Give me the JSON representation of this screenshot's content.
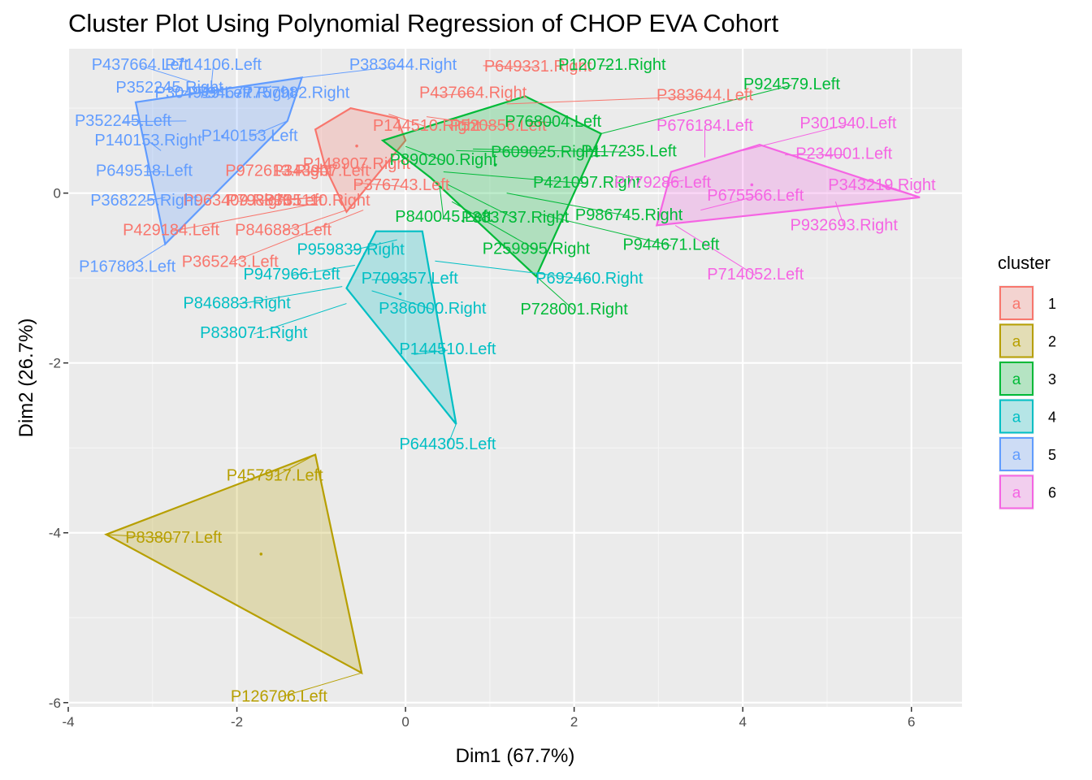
{
  "chart_data": {
    "type": "scatter",
    "title": "Cluster Plot Using Polynomial Regression of CHOP EVA Cohort",
    "xlabel": "Dim1 (67.7%)",
    "ylabel": "Dim2 (26.7%)",
    "xlim": [
      -4.0,
      6.6
    ],
    "ylim": [
      -6.05,
      1.7
    ],
    "x_ticks": [
      -4,
      -2,
      0,
      2,
      4,
      6
    ],
    "y_ticks": [
      -6,
      -4,
      -2,
      0
    ],
    "x_tick_labels": [
      "-4",
      "-2",
      "0",
      "2",
      "4",
      "6"
    ],
    "y_tick_labels": [
      "-6",
      "-4",
      "-2",
      "0"
    ],
    "grid": true,
    "legend_title": "cluster",
    "legend_placement": "right",
    "legend_key_letter": "a",
    "clusters": [
      {
        "name": "1",
        "color": "#F8766D",
        "hull": [
          [
            -1.07,
            0.75
          ],
          [
            -0.65,
            1.0
          ],
          [
            -0.1,
            0.88
          ],
          [
            0.0,
            0.62
          ],
          [
            -0.7,
            -0.22
          ],
          [
            -0.95,
            0.3
          ]
        ],
        "points": [
          {
            "label": "P649331.Right",
            "x": 0.92,
            "y": 1.5,
            "lx": 1.57,
            "ly": 1.5,
            "anchor": "middle"
          },
          {
            "label": "P437664.Right",
            "x": 0.35,
            "y": 1.15,
            "lx": 0.8,
            "ly": 1.19,
            "anchor": "middle"
          },
          {
            "label": "P383644.Left",
            "x": 1.2,
            "y": 1.05,
            "lx": 3.55,
            "ly": 1.16,
            "anchor": "middle"
          },
          {
            "label": "P144510.Right",
            "x": -0.2,
            "y": 0.93,
            "lx": 0.25,
            "ly": 0.8,
            "anchor": "middle"
          },
          {
            "label": "P520856.Left",
            "x": 0.25,
            "y": 0.9,
            "lx": 1.1,
            "ly": 0.8,
            "anchor": "middle"
          },
          {
            "label": "P148907.Right",
            "x": -0.5,
            "y": 0.25,
            "lx": -0.58,
            "ly": 0.35,
            "anchor": "middle"
          },
          {
            "label": "P972613.Right",
            "x": -0.95,
            "y": 0.25,
            "lx": -1.5,
            "ly": 0.27,
            "anchor": "middle"
          },
          {
            "label": "P343907.Left",
            "x": -0.9,
            "y": 0.25,
            "lx": -1.0,
            "ly": 0.27,
            "anchor": "middle"
          },
          {
            "label": "P376743.Left",
            "x": -0.6,
            "y": 0.12,
            "lx": -0.05,
            "ly": 0.1,
            "anchor": "middle"
          },
          {
            "label": "P963409.Right",
            "x": -1.0,
            "y": -0.05,
            "lx": -2.0,
            "ly": -0.08,
            "anchor": "middle"
          },
          {
            "label": "P798835.Left",
            "x": -1.1,
            "y": -0.05,
            "lx": -1.55,
            "ly": -0.08,
            "anchor": "middle"
          },
          {
            "label": "P735110.Right",
            "x": -1.0,
            "y": -0.05,
            "lx": -1.05,
            "ly": -0.08,
            "anchor": "middle"
          },
          {
            "label": "P429184.Left",
            "x": -1.05,
            "y": -0.12,
            "lx": -2.78,
            "ly": -0.43,
            "anchor": "middle"
          },
          {
            "label": "P846883.Left",
            "x": -0.7,
            "y": -0.2,
            "lx": -1.45,
            "ly": -0.43,
            "anchor": "middle"
          },
          {
            "label": "P365243.Left",
            "x": -0.5,
            "y": -0.2,
            "lx": -2.08,
            "ly": -0.8,
            "anchor": "middle"
          }
        ]
      },
      {
        "name": "2",
        "color": "#B79F00",
        "hull": [
          [
            -3.55,
            -4.02
          ],
          [
            -1.07,
            -3.08
          ],
          [
            -0.52,
            -5.65
          ]
        ],
        "points": [
          {
            "label": "P457917.Left",
            "x": -1.07,
            "y": -3.08,
            "lx": -1.55,
            "ly": -3.32,
            "anchor": "middle"
          },
          {
            "label": "P838077.Left",
            "x": -3.55,
            "y": -4.02,
            "lx": -2.75,
            "ly": -4.05,
            "anchor": "middle"
          },
          {
            "label": "P126706.Left",
            "x": -0.52,
            "y": -5.65,
            "lx": -1.5,
            "ly": -5.92,
            "anchor": "middle"
          }
        ]
      },
      {
        "name": "3",
        "color": "#00BA38",
        "hull": [
          [
            -0.27,
            0.62
          ],
          [
            1.42,
            1.14
          ],
          [
            2.32,
            0.7
          ],
          [
            1.55,
            -0.98
          ],
          [
            0.3,
            0.18
          ]
        ],
        "points": [
          {
            "label": "P120721.Right",
            "x": 2.3,
            "y": 1.5,
            "lx": 2.45,
            "ly": 1.52,
            "anchor": "middle"
          },
          {
            "label": "P924579.Left",
            "x": 2.32,
            "y": 0.7,
            "lx": 4.58,
            "ly": 1.29,
            "anchor": "middle"
          },
          {
            "label": "P768004.Left",
            "x": 1.42,
            "y": 0.85,
            "lx": 1.75,
            "ly": 0.85,
            "anchor": "middle"
          },
          {
            "label": "P890200.Right",
            "x": 0.0,
            "y": 0.55,
            "lx": 0.45,
            "ly": 0.4,
            "anchor": "middle"
          },
          {
            "label": "P609025.Right",
            "x": 0.6,
            "y": 0.5,
            "lx": 1.65,
            "ly": 0.49,
            "anchor": "middle"
          },
          {
            "label": "P117235.Left",
            "x": 0.8,
            "y": 0.52,
            "lx": 2.65,
            "ly": 0.5,
            "anchor": "middle"
          },
          {
            "label": "P421097.Right",
            "x": 0.45,
            "y": 0.25,
            "lx": 2.15,
            "ly": 0.13,
            "anchor": "middle"
          },
          {
            "label": "P840045.Left",
            "x": 0.4,
            "y": 0.12,
            "lx": 0.45,
            "ly": -0.27,
            "anchor": "middle"
          },
          {
            "label": "P383737.Right",
            "x": 0.5,
            "y": 0.1,
            "lx": 1.3,
            "ly": -0.28,
            "anchor": "middle"
          },
          {
            "label": "P986745.Right",
            "x": 1.2,
            "y": 0.0,
            "lx": 2.65,
            "ly": -0.25,
            "anchor": "middle"
          },
          {
            "label": "P259995.Right",
            "x": 0.55,
            "y": -0.1,
            "lx": 1.55,
            "ly": -0.65,
            "anchor": "middle"
          },
          {
            "label": "P944671.Left",
            "x": 1.6,
            "y": -0.25,
            "lx": 3.15,
            "ly": -0.6,
            "anchor": "middle"
          },
          {
            "label": "P728001.Right",
            "x": 1.55,
            "y": -0.98,
            "lx": 2.0,
            "ly": -1.36,
            "anchor": "middle"
          }
        ]
      },
      {
        "name": "4",
        "color": "#00BFC4",
        "hull": [
          [
            -0.35,
            -0.45
          ],
          [
            0.2,
            -0.45
          ],
          [
            0.6,
            -2.72
          ],
          [
            -0.7,
            -1.12
          ]
        ],
        "points": [
          {
            "label": "P959839.Right",
            "x": -0.1,
            "y": -0.55,
            "lx": -0.65,
            "ly": -0.66,
            "anchor": "middle"
          },
          {
            "label": "P947966.Left",
            "x": -0.6,
            "y": -0.85,
            "lx": -1.35,
            "ly": -0.95,
            "anchor": "middle"
          },
          {
            "label": "P709357.Left",
            "x": -0.4,
            "y": -1.02,
            "lx": 0.05,
            "ly": -1.0,
            "anchor": "middle"
          },
          {
            "label": "P692460.Right",
            "x": 0.35,
            "y": -0.8,
            "lx": 2.18,
            "ly": -1.0,
            "anchor": "middle"
          },
          {
            "label": "P846883.Right",
            "x": -0.75,
            "y": -1.1,
            "lx": -2.0,
            "ly": -1.29,
            "anchor": "middle"
          },
          {
            "label": "P386000.Right",
            "x": -0.4,
            "y": -1.15,
            "lx": 0.32,
            "ly": -1.35,
            "anchor": "middle"
          },
          {
            "label": "P838071.Right",
            "x": -0.7,
            "y": -1.3,
            "lx": -1.8,
            "ly": -1.64,
            "anchor": "middle"
          },
          {
            "label": "P144510.Left",
            "x": 0.1,
            "y": -1.9,
            "lx": 0.5,
            "ly": -1.83,
            "anchor": "middle"
          },
          {
            "label": "P644305.Left",
            "x": 0.6,
            "y": -2.72,
            "lx": 0.5,
            "ly": -2.95,
            "anchor": "middle"
          }
        ]
      },
      {
        "name": "5",
        "color": "#619CFF",
        "hull": [
          [
            -3.2,
            1.07
          ],
          [
            -1.23,
            1.36
          ],
          [
            -1.4,
            0.85
          ],
          [
            -2.85,
            -0.6
          ]
        ],
        "points": [
          {
            "label": "P437664.Left",
            "x": -2.5,
            "y": 1.3,
            "lx": -3.15,
            "ly": 1.52,
            "anchor": "middle"
          },
          {
            "label": "P714106.Left",
            "x": -2.3,
            "y": 1.3,
            "lx": -2.28,
            "ly": 1.52,
            "anchor": "middle"
          },
          {
            "label": "P383644.Right",
            "x": -1.23,
            "y": 1.36,
            "lx": -0.03,
            "ly": 1.52,
            "anchor": "middle"
          },
          {
            "label": "P352245.Right",
            "x": -2.6,
            "y": 1.2,
            "lx": -2.8,
            "ly": 1.25,
            "anchor": "middle"
          },
          {
            "label": "P304919.Left",
            "x": -2.4,
            "y": 1.15,
            "lx": -2.4,
            "ly": 1.19,
            "anchor": "middle"
          },
          {
            "label": "P794677.Right",
            "x": -2.0,
            "y": 1.15,
            "lx": -1.95,
            "ly": 1.19,
            "anchor": "middle"
          },
          {
            "label": "P757982.Right",
            "x": -1.4,
            "y": 1.1,
            "lx": -1.3,
            "ly": 1.19,
            "anchor": "middle"
          },
          {
            "label": "P352245.Left",
            "x": -2.6,
            "y": 0.85,
            "lx": -3.35,
            "ly": 0.86,
            "anchor": "middle"
          },
          {
            "label": "P140153.Left",
            "x": -1.4,
            "y": 0.85,
            "lx": -1.85,
            "ly": 0.68,
            "anchor": "middle"
          },
          {
            "label": "P140153.Right",
            "x": -2.9,
            "y": 0.5,
            "lx": -3.05,
            "ly": 0.63,
            "anchor": "middle"
          },
          {
            "label": "P649518.Left",
            "x": -2.85,
            "y": 0.25,
            "lx": -3.1,
            "ly": 0.27,
            "anchor": "middle"
          },
          {
            "label": "P368225.Right",
            "x": -2.85,
            "y": -0.05,
            "lx": -3.1,
            "ly": -0.08,
            "anchor": "middle"
          },
          {
            "label": "P167803.Left",
            "x": -2.85,
            "y": -0.6,
            "lx": -3.3,
            "ly": -0.86,
            "anchor": "middle"
          }
        ]
      },
      {
        "name": "6",
        "color": "#F564E3",
        "hull": [
          [
            2.98,
            -0.38
          ],
          [
            3.15,
            0.25
          ],
          [
            4.2,
            0.57
          ],
          [
            6.1,
            -0.05
          ]
        ],
        "points": [
          {
            "label": "P676184.Left",
            "x": 3.55,
            "y": 0.42,
            "lx": 3.55,
            "ly": 0.8,
            "anchor": "middle"
          },
          {
            "label": "P301940.Left",
            "x": 4.0,
            "y": 0.5,
            "lx": 5.25,
            "ly": 0.83,
            "anchor": "middle"
          },
          {
            "label": "P234001.Left",
            "x": 4.5,
            "y": 0.45,
            "lx": 5.2,
            "ly": 0.47,
            "anchor": "middle"
          },
          {
            "label": "P779286.Left",
            "x": 3.3,
            "y": 0.15,
            "lx": 3.05,
            "ly": 0.13,
            "anchor": "middle"
          },
          {
            "label": "P343219.Right",
            "x": 6.1,
            "y": -0.05,
            "lx": 5.65,
            "ly": 0.1,
            "anchor": "middle"
          },
          {
            "label": "P675566.Left",
            "x": 3.5,
            "y": -0.2,
            "lx": 4.15,
            "ly": -0.02,
            "anchor": "middle"
          },
          {
            "label": "P932693.Right",
            "x": 5.1,
            "y": -0.1,
            "lx": 5.2,
            "ly": -0.37,
            "anchor": "middle"
          },
          {
            "label": "P714052.Left",
            "x": 3.2,
            "y": -0.38,
            "lx": 4.15,
            "ly": -0.95,
            "anchor": "middle"
          }
        ]
      }
    ]
  }
}
